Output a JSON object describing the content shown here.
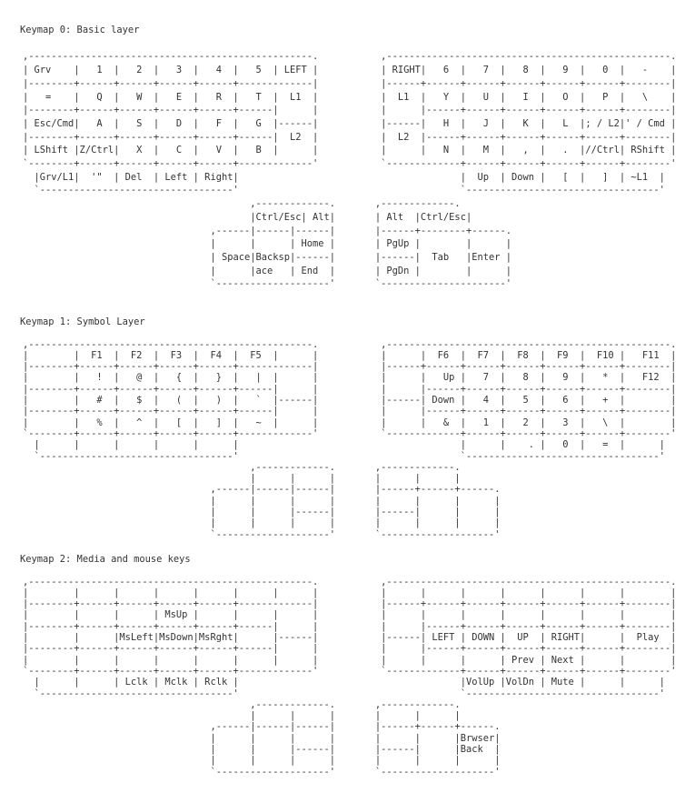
{
  "sections": [
    {
      "title": "Keymap 0: Basic layer",
      "lines": [
        "",
        ",--------------------------------------------------.           ,--------------------------------------------------.",
        "| Grv    |   1  |   2  |   3  |   4  |   5  | LEFT |           | RIGHT|   6  |   7  |   8  |   9  |   0  |   -    |",
        "|--------+------+------+------+------+-------------|           |------+------+------+------+------+------+--------|",
        "|   =    |   Q  |   W  |   E  |   R  |   T  |  L1  |           |  L1  |   Y  |   U  |   I  |   O  |   P  |   \\    |",
        "|--------+------+------+------+------+------|      |           |      |------+------+------+------+------+--------|",
        "| Esc/Cmd|   A  |   S  |   D  |   F  |   G  |------|           |------|   H  |   J  |   K  |   L  |; / L2|' / Cmd |",
        "|--------+------+------+------+------+------|  L2  |           |  L2  |------+------+------+------+------+--------|",
        "| LShift |Z/Ctrl|   X  |   C  |   V  |   B  |      |           |      |   N  |   M  |   ,  |   .  |//Ctrl| RShift |",
        "`--------+------+------+------+------+-------------'           `-------------+------+------+------+------+--------'",
        "  |Grv/L1|  '\"  | Del  | Left | Right|                                       |  Up  | Down |   [  |   ]  | ~L1  |",
        "  `----------------------------------'                                       `----------------------------------'",
        "                                        ,-------------.       ,-------------.",
        "                                        |Ctrl/Esc| Alt|       | Alt  |Ctrl/Esc|",
        "                                 ,------|------|------|       |------+--------+------.",
        "                                 |      |      | Home |       | PgUp |        |      |",
        "                                 | Space|Backsp|------|       |------|  Tab   |Enter |",
        "                                 |      |ace   | End  |       | PgDn |        |      |",
        "                                 `--------------------'       `----------------------'"
      ]
    },
    {
      "title": "Keymap 1: Symbol Layer",
      "lines": [
        "",
        ",--------------------------------------------------.           ,--------------------------------------------------.",
        "|        |  F1  |  F2  |  F3  |  F4  |  F5  |      |           |      |  F6  |  F7  |  F8  |  F9  |  F10 |   F11  |",
        "|--------+------+------+------+------+-------------|           |------+------+------+------+------+------+--------|",
        "|        |   !  |   @  |   {  |   }  |   |  |      |           |      |   Up |   7  |   8  |   9  |   *  |   F12  |",
        "|--------+------+------+------+------+------|      |           |      |------+------+------+------+------+--------|",
        "|        |   #  |   $  |   (  |   )  |   `  |------|           |------| Down |   4  |   5  |   6  |   +  |        |",
        "|--------+------+------+------+------+------|      |           |      |------+------+------+------+------+--------|",
        "|        |   %  |   ^  |   [  |   ]  |   ~  |      |           |      |   &  |   1  |   2  |   3  |   \\  |        |",
        "`--------+------+------+------+------+-------------'           `-------------+------+------+------+------+--------'",
        "  |      |      |      |      |      |                                       |      |    . |   0  |   =  |      |",
        "  `----------------------------------'                                       `----------------------------------'",
        "                                        ,-------------.       ,-------------.",
        "                                        |      |      |       |      |      |",
        "                                 ,------|------|------|       |------+------+------.",
        "                                 |      |      |      |       |      |      |      |",
        "                                 |      |      |------|       |------|      |      |",
        "                                 |      |      |      |       |      |      |      |",
        "                                 `--------------------'       `--------------------'"
      ]
    },
    {
      "title": "Keymap 2: Media and mouse keys",
      "lines": [
        "",
        ",--------------------------------------------------.           ,--------------------------------------------------.",
        "|        |      |      |      |      |      |      |           |      |      |      |      |      |      |        |",
        "|--------+------+------+------+------+-------------|           |------+------+------+------+------+------+--------|",
        "|        |      |      | MsUp |      |      |      |           |      |      |      |      |      |      |        |",
        "|--------+------+------+------+------+------|      |           |      |------+------+------+------+------+--------|",
        "|        |      |MsLeft|MsDown|MsRght|      |------|           |------| LEFT | DOWN |  UP  | RIGHT|      |  Play  |",
        "|--------+------+------+------+------+------|      |           |      |------+------+------+------+------+--------|",
        "|        |      |      |      |      |      |      |           |      |      |      | Prev | Next |      |        |",
        "`--------+------+------+------+------+-------------'           `-------------+------+------+------+------+--------'",
        "  |      |      | Lclk | Mclk | Rclk |                                       |VolUp |VolDn | Mute |      |      |",
        "  `----------------------------------'                                       `----------------------------------'",
        "                                        ,-------------.       ,-------------.",
        "                                        |      |      |       |      |      |",
        "                                 ,------|------|------|       |------+------+------.",
        "                                 |      |      |      |       |      |      |Brwser|",
        "                                 |      |      |------|       |------|      |Back  |",
        "                                 |      |      |      |       |      |      |      |",
        "                                 `--------------------'       `--------------------'"
      ]
    }
  ]
}
